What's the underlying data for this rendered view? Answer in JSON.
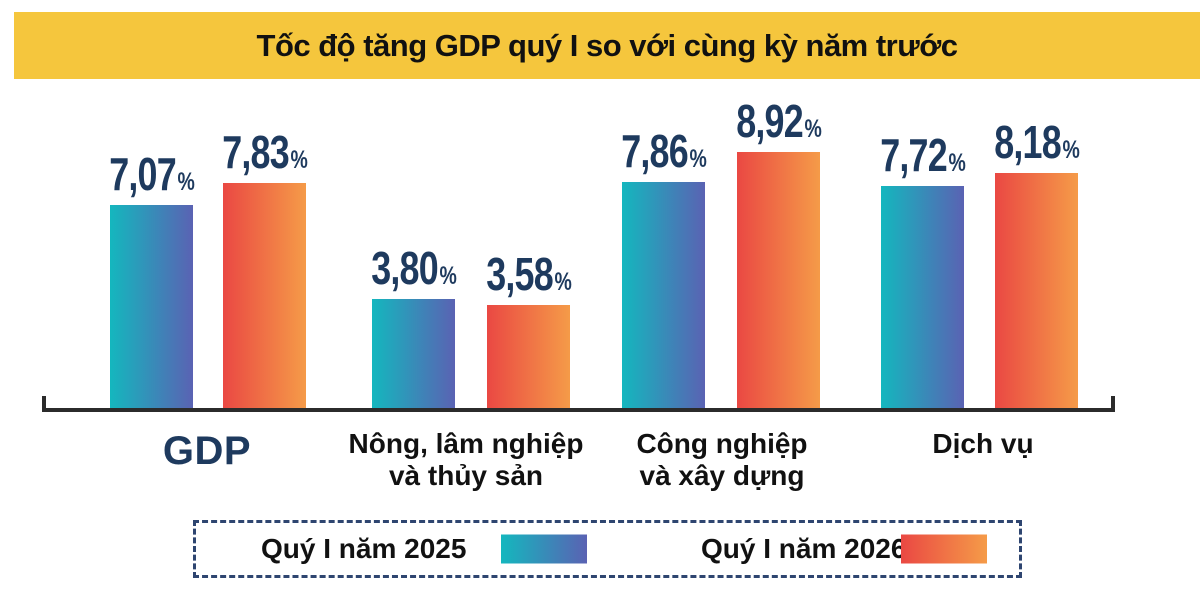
{
  "title": "Tốc độ tăng GDP quý I so với cùng kỳ năm trước",
  "colors": {
    "banner_bg": "#F5C63D",
    "title_text": "#111111",
    "value_label": "#1E3A5E",
    "gdp_label": "#1E3A5E",
    "category_label": "#111111",
    "axis": "#2B2B2B",
    "legend_border": "#2E4570",
    "series_2025_start": "#14B7BE",
    "series_2025_end": "#5A62B3",
    "series_2026_start": "#EA4843",
    "series_2026_end": "#F59B48"
  },
  "chart_data": {
    "type": "bar",
    "title": "Tốc độ tăng GDP quý I so với cùng kỳ năm trước",
    "categories": [
      "GDP",
      "Nông, lâm nghiệp\nvà thủy sản",
      "Công nghiệp\nvà xây dựng",
      "Dịch vụ"
    ],
    "series": [
      {
        "name": "Quý I năm 2025",
        "values": [
          7.07,
          3.8,
          7.86,
          7.72
        ],
        "display": [
          "7,07",
          "3,80",
          "7,86",
          "7,72"
        ]
      },
      {
        "name": "Quý I năm 2026",
        "values": [
          7.83,
          3.58,
          8.92,
          8.18
        ],
        "display": [
          "7,83",
          "3,58",
          "8,92",
          "8,18"
        ]
      }
    ],
    "value_suffix": "%",
    "ylim": [
      0,
      10
    ],
    "grid": false,
    "y_axis_visible": false,
    "legend_position": "bottom"
  }
}
